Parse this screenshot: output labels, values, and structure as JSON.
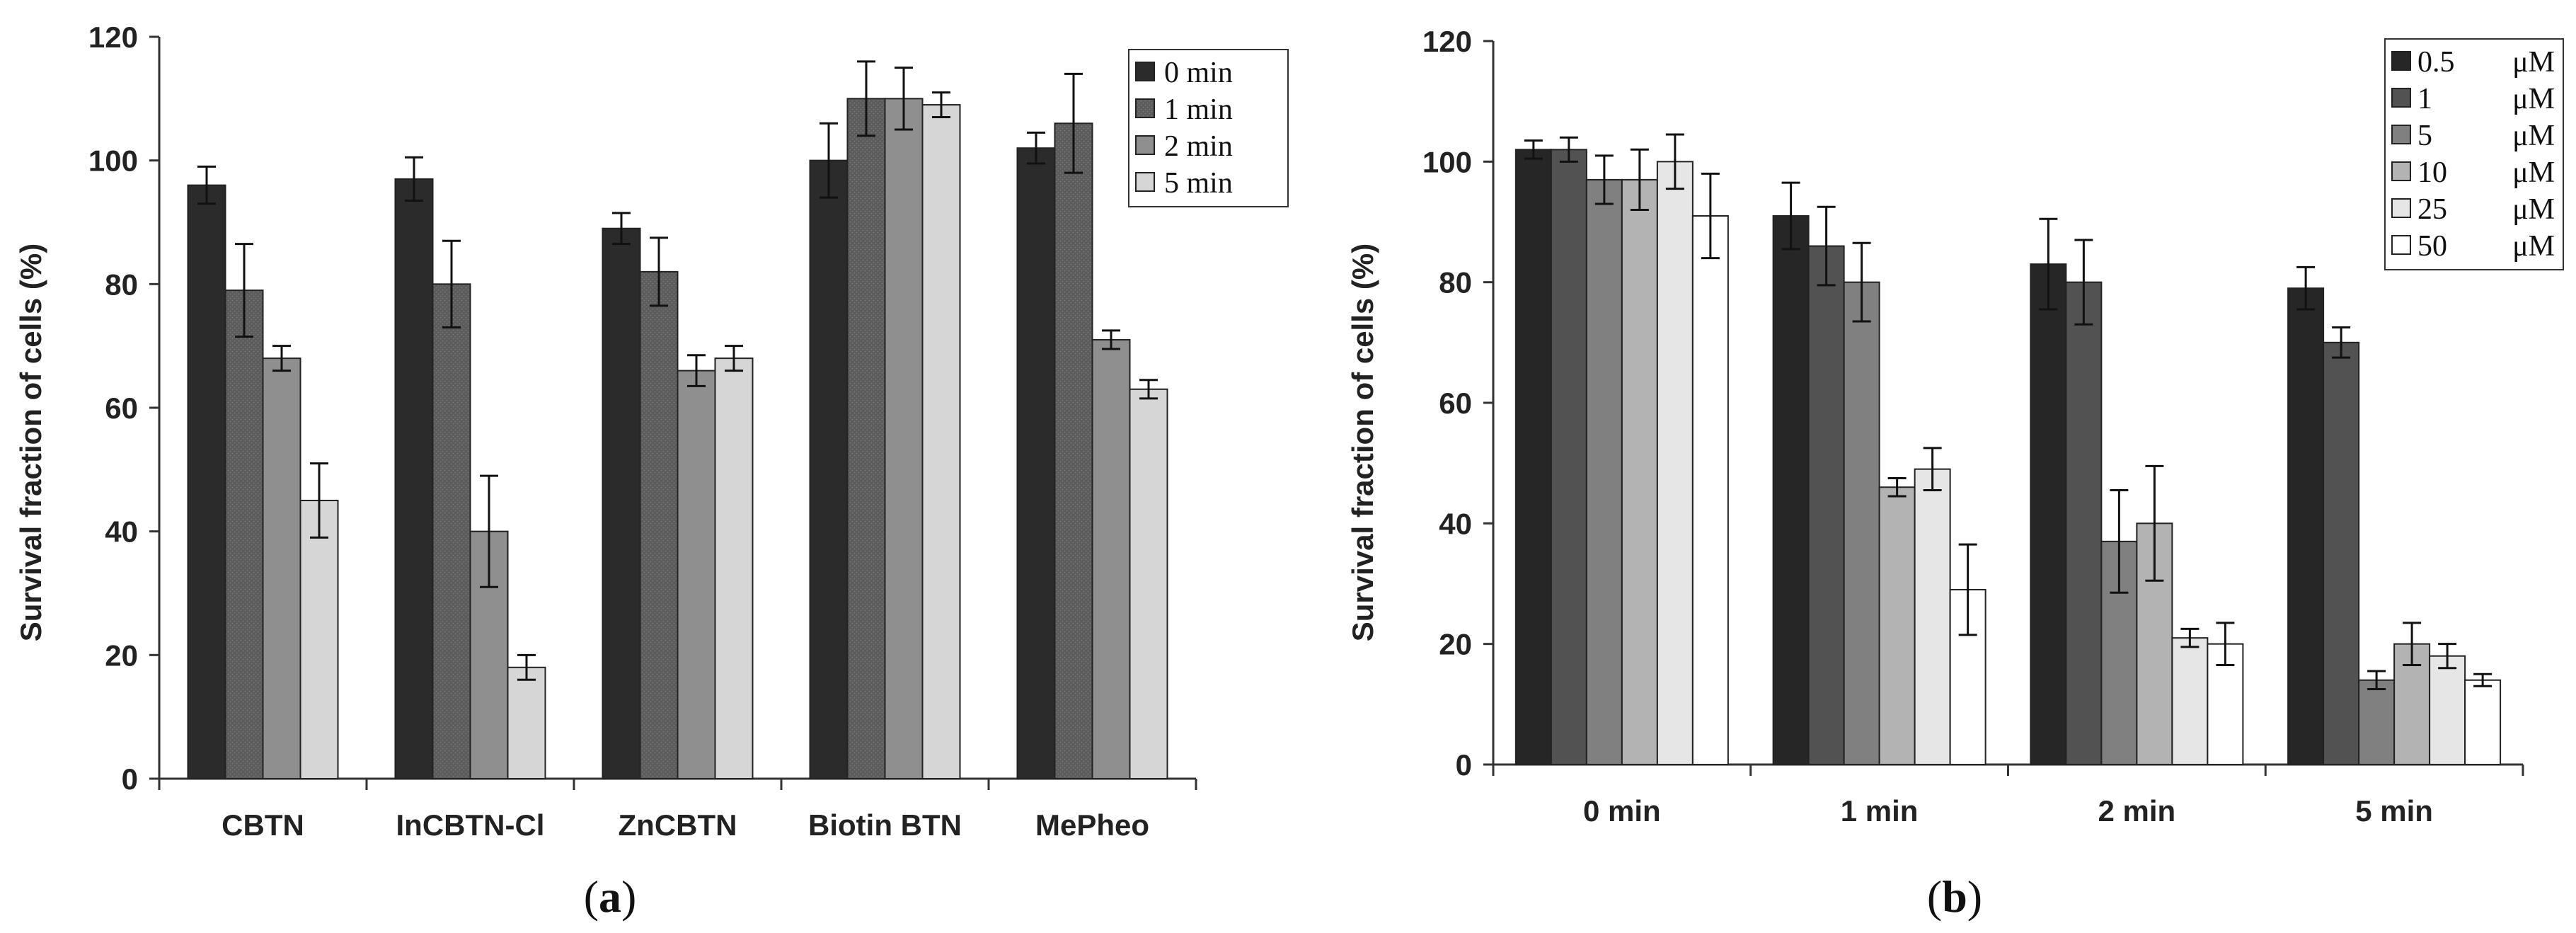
{
  "chart_data": [
    {
      "type": "bar",
      "panel": "a",
      "panel_label_open": "(",
      "panel_label_letter": "a",
      "panel_label_close": ")",
      "title": "",
      "xlabel": "",
      "ylabel": "Survival fraction of cells (%)",
      "ylim": [
        0,
        120
      ],
      "yticks": [
        0,
        20,
        40,
        60,
        80,
        100,
        120
      ],
      "ytick_labels": [
        "0",
        "20",
        "40",
        "60",
        "80",
        "100",
        "120"
      ],
      "grid": false,
      "legend_position": "top-right",
      "categories": [
        "CBTN",
        "InCBTN-Cl",
        "ZnCBTN",
        "Biotin BTN",
        "MePheo"
      ],
      "series": [
        {
          "name": "0 min",
          "color": "#2b2b2b",
          "values": [
            96,
            97,
            89,
            100,
            102
          ],
          "errors": [
            3,
            3.5,
            2.5,
            6,
            2.5
          ]
        },
        {
          "name": "1 min",
          "color": "#5c5c5c",
          "values": [
            79,
            80,
            82,
            110,
            106
          ],
          "errors": [
            7.5,
            7,
            5.5,
            6,
            8
          ]
        },
        {
          "name": "2 min",
          "color": "#8f8f8f",
          "values": [
            68,
            40,
            66,
            110,
            71
          ],
          "errors": [
            2,
            9,
            2.5,
            5,
            1.5
          ]
        },
        {
          "name": "5 min",
          "color": "#d6d6d6",
          "values": [
            45,
            18,
            68,
            109,
            63
          ],
          "errors": [
            6,
            2,
            2,
            2,
            1.5
          ]
        }
      ]
    },
    {
      "type": "bar",
      "panel": "b",
      "panel_label_open": "(",
      "panel_label_letter": "b",
      "panel_label_close": ")",
      "title": "",
      "xlabel": "",
      "ylabel": "Survival fraction of cells (%)",
      "ylim": [
        0,
        120
      ],
      "yticks": [
        0,
        20,
        40,
        60,
        80,
        100,
        120
      ],
      "ytick_labels": [
        "0",
        "20",
        "40",
        "60",
        "80",
        "100",
        "120"
      ],
      "grid": false,
      "legend_position": "top-right",
      "categories": [
        "0 min",
        "1 min",
        "2 min",
        "5 min"
      ],
      "series": [
        {
          "name": "0.5",
          "unit": "μM",
          "color": "#262626",
          "values": [
            102,
            91,
            83,
            79
          ],
          "errors": [
            1.5,
            5.5,
            7.5,
            3.5
          ]
        },
        {
          "name": "1",
          "unit": "μM",
          "color": "#525252",
          "values": [
            102,
            86,
            80,
            70
          ],
          "errors": [
            2,
            6.5,
            7,
            2.5
          ]
        },
        {
          "name": "5",
          "unit": "μM",
          "color": "#808080",
          "values": [
            97,
            80,
            37,
            14
          ],
          "errors": [
            4,
            6.5,
            8.5,
            1.5
          ]
        },
        {
          "name": "10",
          "unit": "μM",
          "color": "#b3b3b3",
          "values": [
            97,
            46,
            40,
            20
          ],
          "errors": [
            5,
            1.5,
            9.5,
            3.5
          ]
        },
        {
          "name": "25",
          "unit": "μM",
          "color": "#e6e6e6",
          "values": [
            100,
            49,
            21,
            18
          ],
          "errors": [
            4.5,
            3.5,
            1.5,
            2
          ]
        },
        {
          "name": "50",
          "unit": "μM",
          "color": "#ffffff",
          "values": [
            91,
            29,
            20,
            14
          ],
          "errors": [
            7,
            7.5,
            3.5,
            1
          ]
        }
      ]
    }
  ]
}
